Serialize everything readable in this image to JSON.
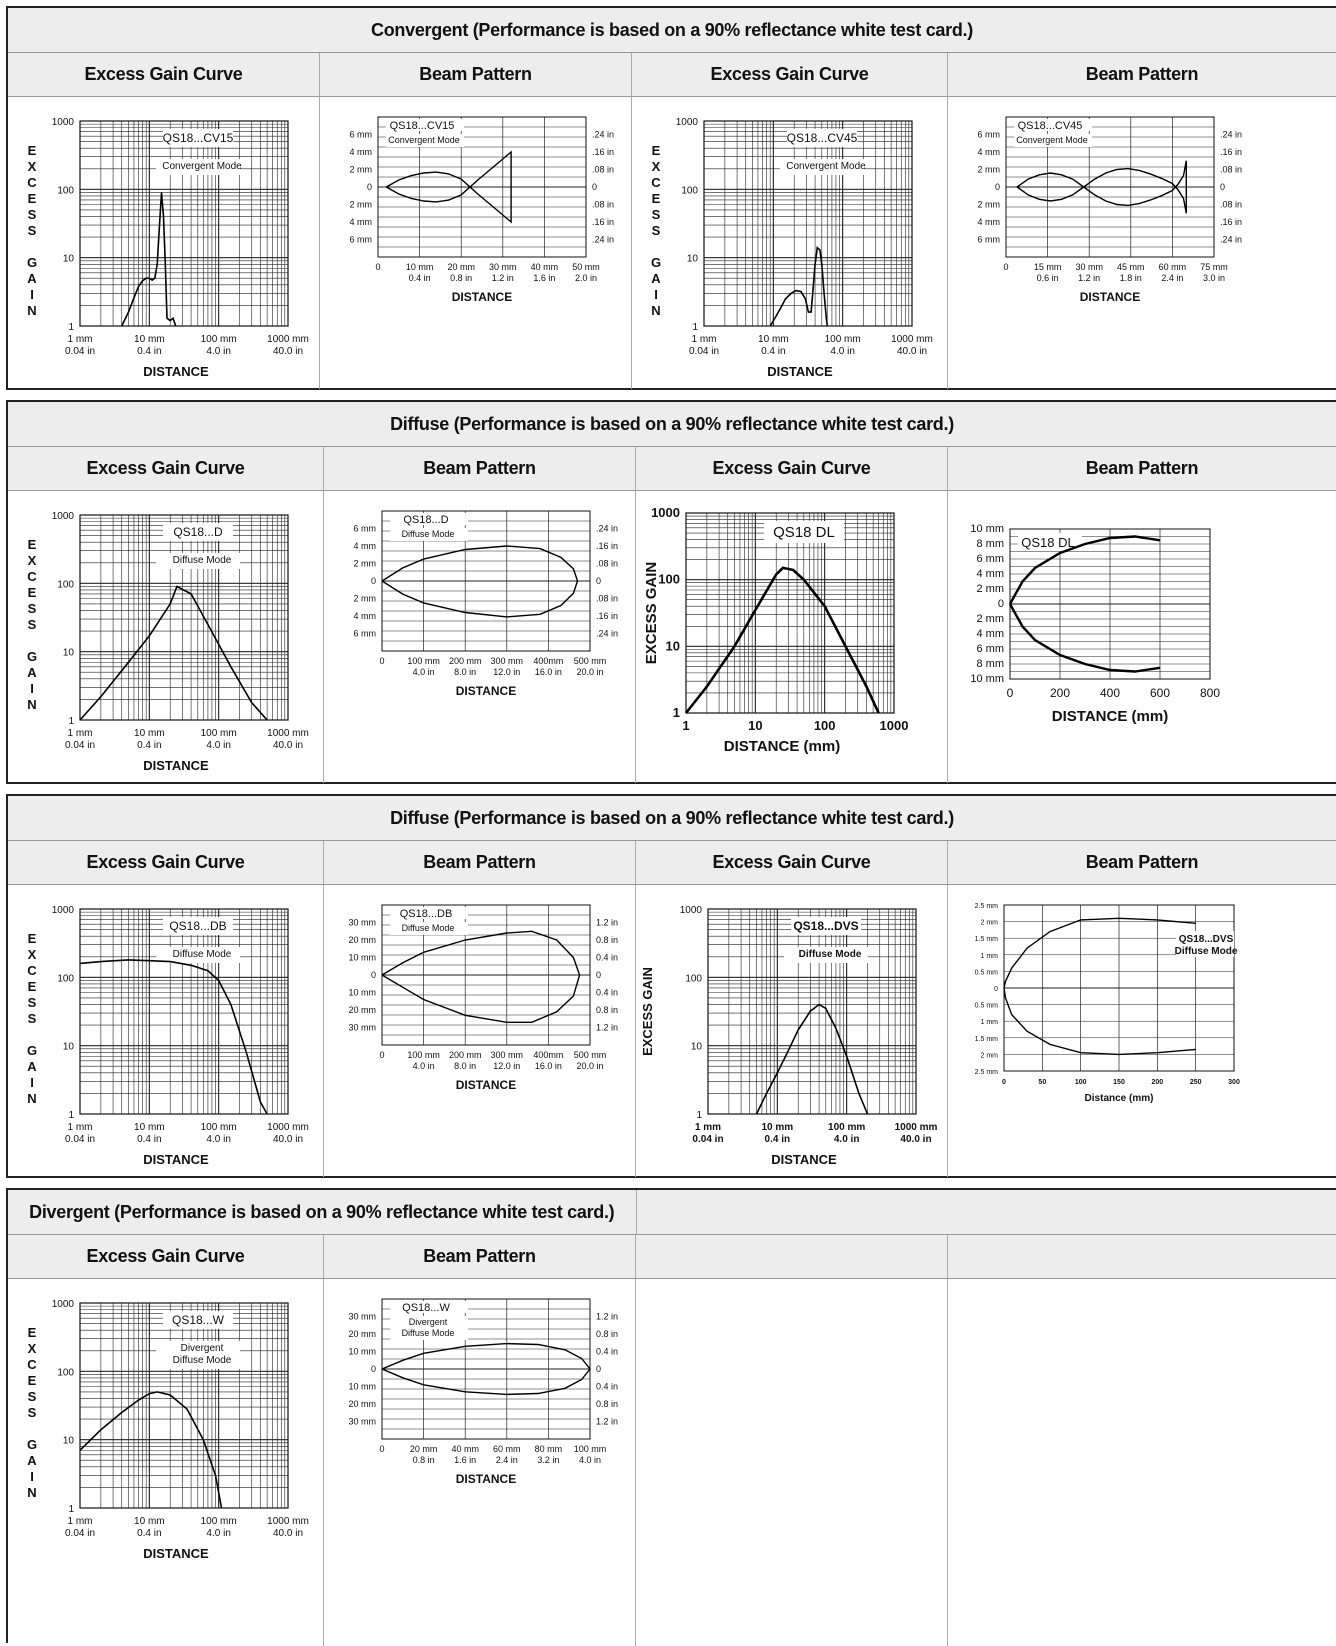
{
  "sections": [
    {
      "title": "Convergent (Performance is based on a 90% reflectance white test card.)"
    },
    {
      "title": "Diffuse (Performance is based on a 90% reflectance white test card.)"
    },
    {
      "title": "Diffuse (Performance is based on a 90% reflectance white test card.)"
    },
    {
      "title": "Divergent (Performance is based on a 90% reflectance white test card.)"
    }
  ],
  "headers": {
    "gain": "Excess Gain Curve",
    "beam": "Beam Pattern"
  },
  "chart_data": [
    {
      "type": "line",
      "kind": "gain",
      "model": "QS18...CV15",
      "mode": "Convergent Mode",
      "ylabel": "EXCESS GAIN",
      "xlabel": "DISTANCE",
      "xticks": [
        [
          "1 mm",
          "0.04 in"
        ],
        [
          "10 mm",
          "0.4 in"
        ],
        [
          "100 mm",
          "4.0 in"
        ],
        [
          "1000 mm",
          "40.0 in"
        ]
      ],
      "yticks": [
        "1",
        "10",
        "100",
        "1000"
      ],
      "x": [
        4,
        5,
        6,
        7,
        8,
        9,
        10,
        11,
        12,
        13,
        14,
        15,
        16,
        17,
        18,
        20,
        22,
        24
      ],
      "y": [
        1,
        1.6,
        2.6,
        3.8,
        4.6,
        5,
        5,
        4.7,
        5,
        8,
        30,
        90,
        40,
        8,
        1.3,
        1.2,
        1.3,
        1
      ]
    },
    {
      "type": "line",
      "kind": "beam",
      "model": "QS18...CV15",
      "mode": "Convergent Mode",
      "xlabel": "DISTANCE",
      "xmax": 50,
      "ymax": 8,
      "xticks": [
        [
          "0",
          ""
        ],
        [
          "10 mm",
          "0.4 in"
        ],
        [
          "20 mm",
          "0.8 in"
        ],
        [
          "30 mm",
          "1.2 in"
        ],
        [
          "40 mm",
          "1.6 in"
        ],
        [
          "50 mm",
          "2.0 in"
        ]
      ],
      "yleft": [
        "6 mm",
        "4 mm",
        "2 mm",
        "0",
        "2 mm",
        "4 mm",
        "6 mm"
      ],
      "yright": [
        ".24 in",
        ".16 in",
        ".08 in",
        "0",
        ".08 in",
        ".16 in",
        ".24 in"
      ],
      "x": [
        2,
        5,
        8,
        11,
        14,
        17,
        20,
        24,
        28,
        32,
        32,
        28,
        24,
        20,
        17,
        14,
        11,
        8,
        5,
        2
      ],
      "y": [
        0,
        0.8,
        1.3,
        1.6,
        1.7,
        1.5,
        0.9,
        -0.8,
        -2.4,
        -4,
        4,
        2.4,
        0.8,
        -0.9,
        -1.5,
        -1.7,
        -1.6,
        -1.3,
        -0.8,
        0
      ]
    },
    {
      "type": "line",
      "kind": "gain",
      "model": "QS18...CV45",
      "mode": "Convergent Mode",
      "ylabel": "EXCESS GAIN",
      "xlabel": "DISTANCE",
      "xticks": [
        [
          "1 mm",
          "0.04 in"
        ],
        [
          "10 mm",
          "0.4 in"
        ],
        [
          "100 mm",
          "4.0 in"
        ],
        [
          "1000 mm",
          "40.0 in"
        ]
      ],
      "yticks": [
        "1",
        "10",
        "100",
        "1000"
      ],
      "x": [
        9,
        11,
        13,
        15,
        18,
        21,
        25,
        29,
        32,
        35,
        37,
        40,
        43,
        47,
        50,
        54,
        58,
        60
      ],
      "y": [
        1,
        1.4,
        1.9,
        2.5,
        3,
        3.3,
        3.2,
        2.5,
        1.6,
        1.6,
        3,
        8,
        14,
        13,
        8,
        3,
        1.3,
        1
      ]
    },
    {
      "type": "line",
      "kind": "beam",
      "model": "QS18...CV45",
      "mode": "Convergent Mode",
      "xlabel": "DISTANCE",
      "xmax": 75,
      "ymax": 8,
      "xticks": [
        [
          "0",
          ""
        ],
        [
          "15 mm",
          "0.6 in"
        ],
        [
          "30 mm",
          "1.2 in"
        ],
        [
          "45 mm",
          "1.8 in"
        ],
        [
          "60 mm",
          "2.4 in"
        ],
        [
          "75 mm",
          "3.0 in"
        ]
      ],
      "yleft": [
        "6 mm",
        "4 mm",
        "2 mm",
        "0",
        "2 mm",
        "4 mm",
        "6 mm"
      ],
      "yright": [
        ".24 in",
        ".16 in",
        ".08 in",
        "0",
        ".08 in",
        ".16 in",
        ".24 in"
      ],
      "x": [
        4,
        8,
        12,
        16,
        20,
        24,
        28,
        32,
        36,
        40,
        44,
        48,
        52,
        56,
        60,
        62,
        64,
        65,
        65,
        64,
        62,
        60,
        56,
        52,
        48,
        44,
        40,
        36,
        32,
        28,
        24,
        20,
        16,
        12,
        8,
        4
      ],
      "y": [
        0,
        0.9,
        1.4,
        1.6,
        1.4,
        0.9,
        0,
        -0.9,
        -1.6,
        -2,
        -2.1,
        -1.9,
        -1.5,
        -1,
        -0.4,
        0.3,
        1.3,
        3,
        -3,
        -1.3,
        -0.3,
        0.4,
        1,
        1.5,
        1.9,
        2.1,
        2,
        1.6,
        0.9,
        0,
        -0.9,
        -1.4,
        -1.6,
        -1.4,
        -0.9,
        0
      ]
    },
    {
      "type": "line",
      "kind": "gain",
      "model": "QS18...D",
      "mode": "Diffuse Mode",
      "ylabel": "EXCESS GAIN",
      "xlabel": "DISTANCE",
      "xticks": [
        [
          "1 mm",
          "0.04 in"
        ],
        [
          "10 mm",
          "0.4 in"
        ],
        [
          "100 mm",
          "4.0 in"
        ],
        [
          "1000 mm",
          "40.0 in"
        ]
      ],
      "yticks": [
        "1",
        "10",
        "100",
        "1000"
      ],
      "x": [
        1,
        2,
        5,
        10,
        20,
        25,
        40,
        70,
        150,
        300,
        500
      ],
      "y": [
        1,
        2.2,
        7,
        17,
        50,
        90,
        70,
        25,
        6,
        1.8,
        1
      ]
    },
    {
      "type": "line",
      "kind": "beam",
      "model": "QS18...D",
      "mode": "Diffuse Mode",
      "xlabel": "DISTANCE",
      "xmax": 500,
      "ymax": 8,
      "xticks": [
        [
          "0",
          ""
        ],
        [
          "100 mm",
          "4.0 in"
        ],
        [
          "200 mm",
          "8.0 in"
        ],
        [
          "300 mm",
          "12.0 in"
        ],
        [
          "400mm",
          "16.0 in"
        ],
        [
          "500 mm",
          "20.0 in"
        ]
      ],
      "yleft": [
        "6 mm",
        "4 mm",
        "2 mm",
        "0",
        "2 mm",
        "4 mm",
        "6 mm"
      ],
      "yright": [
        ".24 in",
        ".16 in",
        ".08 in",
        "0",
        ".08 in",
        ".16 in",
        ".24 in"
      ],
      "x": [
        0,
        50,
        100,
        200,
        300,
        380,
        430,
        460,
        470,
        460,
        430,
        380,
        300,
        200,
        100,
        50,
        0
      ],
      "y": [
        0,
        1.5,
        2.5,
        3.6,
        4,
        3.7,
        2.7,
        1.4,
        0,
        -1.4,
        -2.8,
        -3.8,
        -4.1,
        -3.6,
        -2.5,
        -1.5,
        0
      ]
    },
    {
      "type": "line",
      "kind": "gainbig",
      "model": "QS18 DL",
      "ylabel": "EXCESS GAIN",
      "xlabel": "DISTANCE (mm)",
      "xticks": [
        [
          "1",
          ""
        ],
        [
          "10",
          ""
        ],
        [
          "100",
          ""
        ],
        [
          "1000",
          ""
        ]
      ],
      "yticks": [
        "1",
        "10",
        "100",
        "1000"
      ],
      "x": [
        1,
        2,
        5,
        10,
        20,
        25,
        35,
        50,
        100,
        200,
        400,
        600
      ],
      "y": [
        1,
        2.5,
        10,
        35,
        120,
        150,
        140,
        100,
        40,
        10,
        2.5,
        1
      ]
    },
    {
      "type": "line",
      "kind": "beambig",
      "model": "QS18 DL",
      "xlabel": "DISTANCE (mm)",
      "xmax": 800,
      "ymax": 10,
      "xticks": [
        [
          "0",
          ""
        ],
        [
          "200",
          ""
        ],
        [
          "400",
          ""
        ],
        [
          "600",
          ""
        ],
        [
          "800",
          ""
        ]
      ],
      "yleft": [
        "10 mm",
        "8 mm",
        "6 mm",
        "4 mm",
        "2 mm",
        "0",
        "2 mm",
        "4 mm",
        "6 mm",
        "8 mm",
        "10 mm"
      ],
      "yright": [],
      "x": [
        0,
        50,
        100,
        200,
        300,
        400,
        500,
        600
      ],
      "y": [
        0,
        3,
        4.8,
        6.8,
        8,
        8.8,
        9,
        8.5
      ]
    },
    {
      "type": "line",
      "kind": "gain",
      "model": "QS18...DB",
      "mode": "Diffuse Mode",
      "ylabel": "EXCESS GAIN",
      "xlabel": "DISTANCE",
      "xticks": [
        [
          "1 mm",
          "0.04 in"
        ],
        [
          "10 mm",
          "0.4 in"
        ],
        [
          "100 mm",
          "4.0 in"
        ],
        [
          "1000 mm",
          "40.0 in"
        ]
      ],
      "yticks": [
        "1",
        "10",
        "100",
        "1000"
      ],
      "x": [
        1,
        2,
        5,
        10,
        20,
        40,
        70,
        100,
        150,
        250,
        400,
        500
      ],
      "y": [
        160,
        170,
        180,
        175,
        170,
        150,
        125,
        90,
        40,
        8,
        1.5,
        1
      ]
    },
    {
      "type": "line",
      "kind": "beam",
      "model": "QS18...DB",
      "mode": "Diffuse Mode",
      "xlabel": "DISTANCE",
      "xmax": 500,
      "ymax": 40,
      "xticks": [
        [
          "0",
          ""
        ],
        [
          "100 mm",
          "4.0 in"
        ],
        [
          "200 mm",
          "8.0 in"
        ],
        [
          "300 mm",
          "12.0 in"
        ],
        [
          "400mm",
          "16.0 in"
        ],
        [
          "500 mm",
          "20.0 in"
        ]
      ],
      "yleft": [
        "30 mm",
        "20 mm",
        "10 mm",
        "0",
        "10 mm",
        "20 mm",
        "30 mm"
      ],
      "yright": [
        "1.2 in",
        "0.8 in",
        "0.4 in",
        "0",
        "0.4 in",
        "0.8 in",
        "1.2 in"
      ],
      "x": [
        0,
        50,
        100,
        200,
        300,
        360,
        420,
        460,
        475,
        460,
        420,
        360,
        300,
        200,
        100,
        50,
        0
      ],
      "y": [
        0,
        7,
        13,
        20,
        24,
        25,
        20,
        10,
        0,
        -12,
        -21,
        -27,
        -27,
        -23,
        -14,
        -7,
        0
      ]
    },
    {
      "type": "line",
      "kind": "gain",
      "model": "QS18...DVS",
      "mode": "Diffuse Mode",
      "ylabel": "EXCESS GAIN",
      "xlabel": "DISTANCE",
      "bold": true,
      "xticks": [
        [
          "1 mm",
          "0.04 in"
        ],
        [
          "10 mm",
          "0.4 in"
        ],
        [
          "100 mm",
          "4.0 in"
        ],
        [
          "1000 mm",
          "40.0 in"
        ]
      ],
      "yticks": [
        "1",
        "10",
        "100",
        "1000"
      ],
      "x": [
        5,
        7,
        10,
        14,
        20,
        30,
        40,
        50,
        70,
        100,
        150,
        200
      ],
      "y": [
        1,
        2,
        4,
        8,
        17,
        32,
        40,
        35,
        18,
        7,
        2,
        1
      ]
    },
    {
      "type": "line",
      "kind": "beamsmall",
      "model": "QS18...DVS",
      "mode": "Diffuse Mode",
      "xlabel": "Distance (mm)",
      "xmax": 300,
      "ymax": 2.5,
      "xticks": [
        [
          "0",
          ""
        ],
        [
          "50",
          ""
        ],
        [
          "100",
          ""
        ],
        [
          "150",
          ""
        ],
        [
          "200",
          ""
        ],
        [
          "250",
          ""
        ],
        [
          "300",
          ""
        ]
      ],
      "yleft": [
        "2.5 mm",
        "2 mm",
        "1.5 mm",
        "1 mm",
        "0.5 mm",
        "0",
        "0.5 mm",
        "1 mm",
        "1.5 mm",
        "2 mm",
        "2.5 mm"
      ],
      "yright": [],
      "x": [
        250,
        200,
        150,
        100,
        60,
        30,
        10,
        2,
        0,
        2,
        10,
        30,
        60,
        100,
        150,
        200,
        250
      ],
      "y": [
        1.95,
        2.05,
        2.1,
        2.05,
        1.7,
        1.2,
        0.6,
        0.2,
        0,
        -0.3,
        -0.8,
        -1.3,
        -1.7,
        -1.95,
        -2,
        -1.95,
        -1.85
      ]
    },
    {
      "type": "line",
      "kind": "gain",
      "model": "QS18...W",
      "mode": "Divergent Diffuse Mode",
      "ylabel": "EXCESS GAIN",
      "xlabel": "DISTANCE",
      "xticks": [
        [
          "1 mm",
          "0.04 in"
        ],
        [
          "10 mm",
          "0.4 in"
        ],
        [
          "100 mm",
          "4.0 in"
        ],
        [
          "1000 mm",
          "40.0 in"
        ]
      ],
      "yticks": [
        "1",
        "10",
        "100",
        "1000"
      ],
      "x": [
        1,
        2,
        4,
        7,
        10,
        13,
        20,
        35,
        60,
        90,
        110
      ],
      "y": [
        7,
        14,
        25,
        38,
        47,
        50,
        45,
        28,
        10,
        3,
        1
      ]
    },
    {
      "type": "line",
      "kind": "beam",
      "model": "QS18...W",
      "mode": "Divergent Diffuse Mode",
      "xlabel": "DISTANCE",
      "xmax": 100,
      "ymax": 40,
      "xticks": [
        [
          "0",
          ""
        ],
        [
          "20 mm",
          "0.8 in"
        ],
        [
          "40 mm",
          "1.6 in"
        ],
        [
          "60 mm",
          "2.4 in"
        ],
        [
          "80 mm",
          "3.2 in"
        ],
        [
          "100 mm",
          "4.0 in"
        ]
      ],
      "yleft": [
        "30 mm",
        "20 mm",
        "10 mm",
        "0",
        "10 mm",
        "20 mm",
        "30 mm"
      ],
      "yright": [
        "1.2 in",
        "0.8 in",
        "0.4 in",
        "0",
        "0.4 in",
        "0.8 in",
        "1.2 in"
      ],
      "x": [
        0,
        10,
        20,
        40,
        60,
        75,
        88,
        96,
        100,
        96,
        88,
        75,
        60,
        40,
        20,
        10,
        0
      ],
      "y": [
        0,
        5,
        9,
        13,
        14.5,
        14,
        11,
        6,
        0,
        -6,
        -11,
        -14,
        -14.5,
        -13,
        -9,
        -5,
        0
      ]
    }
  ]
}
